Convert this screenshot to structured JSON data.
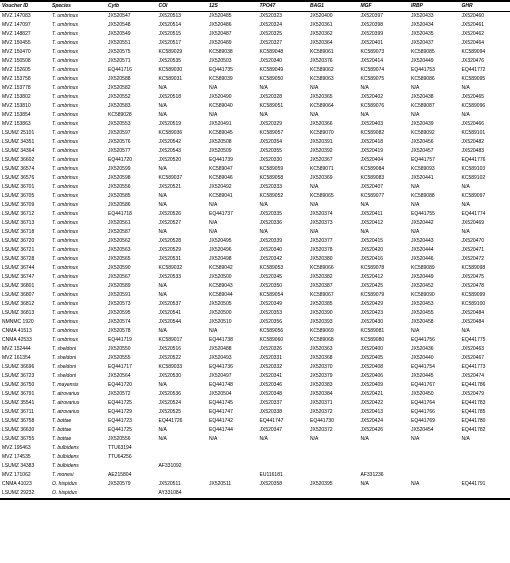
{
  "columns": [
    "Voucher ID",
    "Species",
    "Cytb",
    "COI",
    "12S",
    "TPO47",
    "BAG1",
    "MGF",
    "IRBP",
    "GHR"
  ],
  "rows": [
    [
      "MVZ 147083",
      "T. umbrinus",
      "JX520547",
      "JX520513",
      "JX520485",
      "JX520323",
      "JX520400",
      "JX520397",
      "JX520433",
      "JX520460"
    ],
    [
      "MVZ 147097",
      "T. umbrinus",
      "JX520548",
      "JX520514",
      "JX520486",
      "JX520324",
      "JX520361",
      "JX520398",
      "JX520434",
      "JX520461"
    ],
    [
      "MVZ 148827",
      "T. umbrinus",
      "JX520549",
      "JX520515",
      "JX520487",
      "JX520325",
      "JX520362",
      "JX520399",
      "JX520435",
      "JX520462"
    ],
    [
      "MVZ 150455",
      "T. umbrinus",
      "JX520551",
      "JX520517",
      "JX520489",
      "JX520327",
      "JX520364",
      "JX520401",
      "JX520437",
      "JX520464"
    ],
    [
      "MVZ 150470",
      "T. umbrinus",
      "JX520575",
      "KC589029",
      "KC589038",
      "KC589048",
      "KC589061",
      "KC589073",
      "KC589085",
      "KC589094"
    ],
    [
      "MVZ 150508",
      "T. umbrinus",
      "JX520571",
      "JX520535",
      "JX520503",
      "JX520340",
      "JX520376",
      "JX520414",
      "JX520449",
      "JX320476"
    ],
    [
      "MVZ 152605",
      "T. umbrinus",
      "EQ441716",
      "KC589030",
      "EQ441735",
      "KC589049",
      "KC589062",
      "KC589074",
      "EQ441753",
      "EQ441772"
    ],
    [
      "MVZ 153758",
      "T. umbrinus",
      "JX520588",
      "KC589031",
      "KC589039",
      "KC589050",
      "KC589063",
      "KC589075",
      "KC589086",
      "KC589095"
    ],
    [
      "MVZ 153778",
      "T. umbrinus",
      "JX520582",
      "N/A",
      "N/A",
      "N/A",
      "N/A",
      "N/A",
      "N/A",
      "N/A"
    ],
    [
      "MVZ 153802",
      "T. umbrinus",
      "JX520552",
      "JX520518",
      "JX520490",
      "JX520328",
      "JX520365",
      "JX520402",
      "JX520438",
      "JX520465"
    ],
    [
      "MVZ 153810",
      "T. umbrinus",
      "JX520583",
      "N/A",
      "KC589040",
      "KC589051",
      "KC589064",
      "KC589076",
      "KC589087",
      "KC589096"
    ],
    [
      "MVZ 153854",
      "T. umbrinus",
      "KC589028",
      "N/A",
      "N/A",
      "N/A",
      "N/A",
      "N/A",
      "N/A",
      "N/A"
    ],
    [
      "MVZ 153863",
      "T. umbrinus",
      "JX520553",
      "JX520519",
      "JX520491",
      "JX520329",
      "JX520366",
      "JX520403",
      "JX520439",
      "JX520466"
    ],
    [
      "LSUMZ 25101",
      "T. umbrinus",
      "JX520597",
      "KC589036",
      "KC589045",
      "KC589057",
      "KC589070",
      "KC589082",
      "KC589092",
      "KC589101"
    ],
    [
      "LSUMZ 34351",
      "T. umbrinus",
      "JX520576",
      "JX520542",
      "JX520508",
      "JX520354",
      "JX520391",
      "JX520418",
      "JX520456",
      "JX520482"
    ],
    [
      "LSUMZ 34364",
      "T. umbrinus",
      "JX520577",
      "JX520543",
      "JX520509",
      "JX520355",
      "JX520392",
      "JX520419",
      "JX520457",
      "JX520483"
    ],
    [
      "LSUMZ 36602",
      "T. umbrinus",
      "EQ441720",
      "JX520520",
      "EQ441739",
      "JX520330",
      "JX520367",
      "JX520404",
      "EQ441757",
      "EQ441776"
    ],
    [
      "LSUMZ 36574",
      "T. umbrinus",
      "JX520599",
      "N/A",
      "KC589047",
      "KC589059",
      "KC589071",
      "KC589084",
      "KC589093",
      "KC589103"
    ],
    [
      "LSUMZ 36576",
      "T. umbrinus",
      "JX520598",
      "KC589037",
      "KC589046",
      "KC589058",
      "JX520369",
      "KC589083",
      "JX520441",
      "KC589102"
    ],
    [
      "LSUMZ 36701",
      "T. umbrinus",
      "JX520556",
      "JX520521",
      "JX520492",
      "JX520333",
      "N/A",
      "JX520407",
      "N/A",
      "N/A"
    ],
    [
      "LSUMZ 36705",
      "T. umbrinus",
      "JX520585",
      "N/A",
      "KC589041",
      "KC589052",
      "KC589065",
      "KC589077",
      "KC589088",
      "KC589097"
    ],
    [
      "LSUMZ 36709",
      "T. umbrinus",
      "JX520586",
      "N/A",
      "N/A",
      "N/A",
      "N/A",
      "N/A",
      "N/A",
      "N/A"
    ],
    [
      "LSUMZ 36712",
      "T. umbrinus",
      "EQ441718",
      "JX520526",
      "EQ441737",
      "JX520335",
      "JX520374",
      "JX520411",
      "EQ441755",
      "EQ441774"
    ],
    [
      "LSUMZ 36713",
      "T. umbrinus",
      "JX520561",
      "JX520527",
      "N/A",
      "JX520336",
      "JX520373",
      "JX520412",
      "JX520442",
      "JX520469"
    ],
    [
      "LSUMZ 36718",
      "T. umbrinus",
      "JX520587",
      "N/A",
      "N/A",
      "N/A",
      "N/A",
      "N/A",
      "N/A",
      "N/A"
    ],
    [
      "LSUMZ 36720",
      "T. umbrinus",
      "JX520562",
      "JX520528",
      "JX520495",
      "JX520339",
      "JX520377",
      "JX520415",
      "JX520443",
      "JX520470"
    ],
    [
      "LSUMZ 36721",
      "T. umbrinus",
      "JX520563",
      "JX520529",
      "JX520496",
      "JX520340",
      "JX520378",
      "JX520420",
      "JX520444",
      "JX520471"
    ],
    [
      "LSUMZ 36728",
      "T. umbrinus",
      "JX520565",
      "JX520531",
      "JX520498",
      "JX520342",
      "JX520380",
      "JX520416",
      "JX520446",
      "JX520472"
    ],
    [
      "LSUMZ 36744",
      "T. umbrinus",
      "JX520590",
      "KC589032",
      "KC589042",
      "KC589053",
      "KC589066",
      "KC589078",
      "KC589089",
      "KC589098"
    ],
    [
      "LSUMZ 36747",
      "T. umbrinus",
      "JX520567",
      "JX520533",
      "JX520500",
      "JX520345",
      "JX520382",
      "JX520412",
      "JX520449",
      "JX520475"
    ],
    [
      "LSUMZ 36801",
      "T. umbrinus",
      "JX520589",
      "N/A",
      "KC589043",
      "JX520350",
      "JX520387",
      "JX520425",
      "JX520452",
      "JX520478"
    ],
    [
      "LSUMZ 36807",
      "T. umbrinus",
      "JX520591",
      "N/A",
      "KC589044",
      "KC589054",
      "KC589067",
      "KC589079",
      "KC589090",
      "KC589099"
    ],
    [
      "LSUMZ 36812",
      "T. umbrinus",
      "JX520573",
      "JX520537",
      "JX520505",
      "JX520349",
      "JX520385",
      "JX520429",
      "JX520453",
      "KC589100"
    ],
    [
      "LSUMZ 36813",
      "T. umbrinus",
      "JX520595",
      "JX520541",
      "JX520500",
      "JX520353",
      "JX520390",
      "JX520423",
      "JX520455",
      "JX520484"
    ],
    [
      "NMNMC 1920",
      "T. umbrinus",
      "JX520574",
      "JX520544",
      "JX520510",
      "JX520356",
      "JX520393",
      "JX520430",
      "JX520458",
      "JX520484"
    ],
    [
      "CNMA 41513",
      "T. umbrinus",
      "JX520578",
      "N/A",
      "N/A",
      "KC589056",
      "KC589069",
      "KC589081",
      "N/A",
      "N/A"
    ],
    [
      "CNMA 42533",
      "T. umbrinus",
      "EQ441719",
      "KC589017",
      "EQ441738",
      "KC589060",
      "KC589068",
      "KC589080",
      "EQ441756",
      "EQ441775"
    ],
    [
      "MVZ 152444",
      "T. sheldoni",
      "JX520550",
      "JX520516",
      "JX520488",
      "JX520326",
      "JX520363",
      "JX520400",
      "JX520436",
      "JX520463"
    ],
    [
      "MVZ 161354",
      "T. sheldoni",
      "JX520555",
      "JX520522",
      "JX520493",
      "JX520331",
      "JX520368",
      "JX520405",
      "JX520440",
      "JX520467"
    ],
    [
      "LSUMZ 36696",
      "T. sheldoni",
      "EQ441717",
      "KC589033",
      "EQ441736",
      "JX520332",
      "JX520370",
      "JX520408",
      "EQ441754",
      "EQ441773"
    ],
    [
      "LSUMZ 36723",
      "T. sheldoni",
      "JX520564",
      "JX520530",
      "JX520497",
      "JX520341",
      "JX520379",
      "JX520406",
      "JX520445",
      "JX520474"
    ],
    [
      "LSUMZ 36750",
      "T. mayensis",
      "EQ441720",
      "N/A",
      "EQ441748",
      "JX520346",
      "JX520383",
      "JX520409",
      "EQ441767",
      "EQ441786"
    ],
    [
      "LSUMZ 36791",
      "T. atrovarius",
      "JX520572",
      "JX520536",
      "JX520504",
      "JX520348",
      "JX520384",
      "JX520421",
      "JX520450",
      "JX520479"
    ],
    [
      "LSUMZ 35541",
      "T. atrovarius",
      "EQ441725",
      "JX520524",
      "EQ441745",
      "JX520337",
      "JX520371",
      "JX520422",
      "EQ441764",
      "EQ441783"
    ],
    [
      "LSUMZ 36711",
      "T. atrovarius",
      "EQ441729",
      "JX520525",
      "EQ441747",
      "JX520338",
      "JX520372",
      "JX520413",
      "EQ441766",
      "EQ441785"
    ],
    [
      "LSUMZ 36758",
      "T. bottae",
      "EQ441723",
      "EQ441726",
      "EQ441742",
      "EQ441747",
      "EQ441730",
      "JX520424",
      "EQ441769",
      "EQ441780"
    ],
    [
      "LSUMZ 36630",
      "T. bottae",
      "EQ441725",
      "N/A",
      "EQ441744",
      "JX520347",
      "JX520372",
      "JX520426",
      "JX520454",
      "EQ441782"
    ],
    [
      "LSUMZ 36755",
      "T. bottae",
      "JX520556",
      "N/A",
      "N/A",
      "N/A",
      "N/A",
      "N/A",
      "N/A",
      "N/A"
    ],
    [
      "MVZ 195463",
      "T. bulbidens",
      "TTU63194",
      "",
      "",
      "",
      "",
      "",
      "",
      ""
    ],
    [
      "MVZ 174535",
      "T. bulbidens",
      "TTU64256",
      "",
      "",
      "",
      "",
      "",
      "",
      ""
    ],
    [
      "LSUMZ 34383",
      "T. bulbidens",
      "",
      "AF331092",
      "",
      "",
      "",
      "",
      "",
      ""
    ],
    [
      "MVZ 171062",
      "T. monesi",
      "AE215804",
      "",
      "",
      "EU116181",
      "",
      "AF331236",
      "",
      ""
    ],
    [
      "CNMA 41023",
      "O. hispidus",
      "JX520579",
      "JX520511",
      "JX520511",
      "JX520358",
      "JX520395",
      "N/A",
      "N/A",
      "EQ441791"
    ],
    [
      "LSUMZ 29232",
      "O. hispidus",
      "",
      "AY331084",
      "",
      "",
      "",
      "",
      "",
      ""
    ]
  ]
}
